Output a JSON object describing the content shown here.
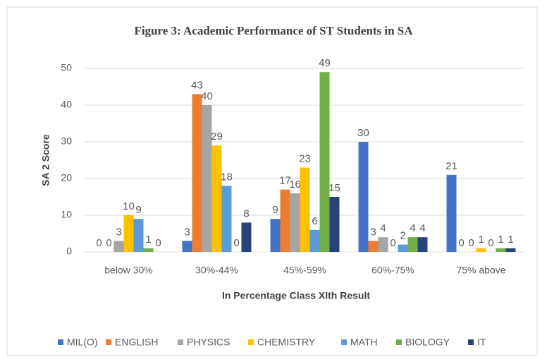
{
  "chart_data": {
    "type": "bar",
    "title": "Figure 3: Academic Performance of ST Students in SA",
    "x_label": "In Percentage Class XIth Result",
    "y_label": "SA 2 Score",
    "categories": [
      "below 30%",
      "30%-44%",
      "45%-59%",
      "60%-75%",
      "75% above"
    ],
    "series": [
      {
        "name": "MIL(O)",
        "color": "#4472c4",
        "values": [
          0,
          3,
          9,
          30,
          21
        ]
      },
      {
        "name": "ENGLISH",
        "color": "#ed7d31",
        "values": [
          0,
          43,
          17,
          3,
          0
        ]
      },
      {
        "name": "PHYSICS",
        "color": "#a5a5a5",
        "values": [
          3,
          40,
          16,
          4,
          0
        ]
      },
      {
        "name": "CHEMISTRY",
        "color": "#ffc000",
        "values": [
          10,
          29,
          23,
          0,
          1
        ]
      },
      {
        "name": "MATH",
        "color": "#5b9bd5",
        "values": [
          9,
          18,
          6,
          2,
          0
        ]
      },
      {
        "name": "BIOLOGY",
        "color": "#70ad47",
        "values": [
          1,
          0,
          49,
          4,
          1
        ]
      },
      {
        "name": "IT",
        "color": "#264478",
        "values": [
          0,
          8,
          15,
          4,
          1
        ]
      }
    ],
    "ylim": [
      0,
      50
    ],
    "yticks": [
      0,
      10,
      20,
      30,
      40,
      50
    ],
    "grid": true,
    "legend": "bottom"
  }
}
